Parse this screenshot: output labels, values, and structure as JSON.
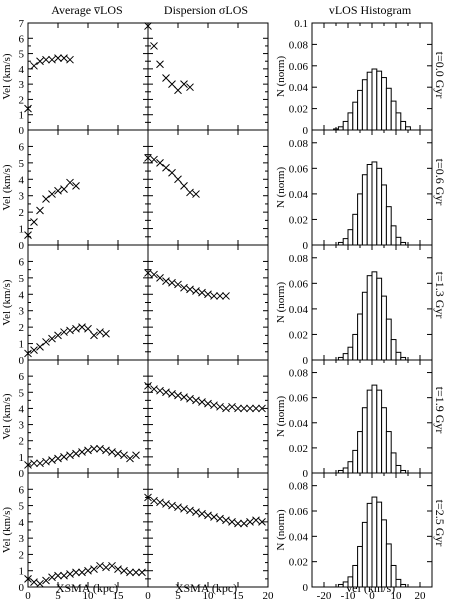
{
  "figure": {
    "col_titles": [
      "Average v̅LOS",
      "Dispersion σLOS",
      "vLOS Histogram"
    ],
    "row_labels": [
      "t=0.0 Gyr",
      "t=0.6 Gyr",
      "t=1.3 Gyr",
      "t=1.9 Gyr",
      "t=2.5 Gyr"
    ],
    "ylabel_left": "Vel (km/s)",
    "ylabel_right": "N (norm)",
    "xlabel_left": "XSMA (kpc)",
    "xlabel_mid": "XSMA (kpc)",
    "xlabel_right": "Vel (km/s)",
    "y_ticks_vel": [
      "0",
      "1",
      "2",
      "3",
      "4",
      "5",
      "6",
      "7"
    ],
    "y_ticks_vel_short": [
      "0",
      "1",
      "2",
      "3",
      "4",
      "5",
      "6"
    ],
    "y_ticks_hist": [
      "0",
      "0.02",
      "0.04",
      "0.06",
      "0.08",
      "0.1"
    ],
    "y_ticks_hist_short": [
      "0",
      "0.02",
      "0.04",
      "0.06",
      "0.08"
    ],
    "x_ticks_kpc_left": [
      "0",
      "5",
      "10",
      "15"
    ],
    "x_ticks_kpc_mid": [
      "0",
      "5",
      "10",
      "15",
      "20"
    ],
    "x_ticks_hist": [
      "-20",
      "-10",
      "0",
      "10",
      "20"
    ]
  },
  "chart_data": [
    {
      "type": "scatter",
      "panel": "avg-t0.0",
      "marker": "x",
      "xlim": [
        0,
        20
      ],
      "ylim": [
        0,
        7
      ],
      "x": [
        0,
        1,
        2,
        3,
        4,
        5,
        6,
        7
      ],
      "y": [
        1.4,
        4.2,
        4.5,
        4.6,
        4.6,
        4.7,
        4.7,
        4.6
      ]
    },
    {
      "type": "scatter",
      "panel": "avg-t0.6",
      "marker": "x",
      "xlim": [
        0,
        20
      ],
      "ylim": [
        0,
        7
      ],
      "x": [
        0,
        1,
        2,
        3,
        4,
        5,
        6,
        7,
        8
      ],
      "y": [
        0.6,
        1.4,
        2.1,
        2.8,
        3.1,
        3.3,
        3.4,
        3.8,
        3.6
      ]
    },
    {
      "type": "scatter",
      "panel": "avg-t1.3",
      "marker": "x",
      "xlim": [
        0,
        20
      ],
      "ylim": [
        0,
        7
      ],
      "x": [
        0,
        1,
        2,
        3,
        4,
        5,
        6,
        7,
        8,
        9,
        10,
        11,
        12,
        13
      ],
      "y": [
        0.4,
        0.6,
        0.8,
        1.1,
        1.3,
        1.5,
        1.7,
        1.8,
        1.9,
        2.0,
        1.9,
        1.5,
        1.7,
        1.6
      ]
    },
    {
      "type": "scatter",
      "panel": "avg-t1.9",
      "marker": "x",
      "xlim": [
        0,
        20
      ],
      "ylim": [
        0,
        7
      ],
      "x": [
        0,
        1,
        2,
        3,
        4,
        5,
        6,
        7,
        8,
        9,
        10,
        11,
        12,
        13,
        14,
        15,
        16,
        17,
        18
      ],
      "y": [
        0.5,
        0.6,
        0.6,
        0.7,
        0.8,
        0.9,
        1.0,
        1.1,
        1.2,
        1.3,
        1.4,
        1.5,
        1.5,
        1.4,
        1.3,
        1.2,
        1.1,
        0.9,
        1.1
      ]
    },
    {
      "type": "scatter",
      "panel": "avg-t2.5",
      "marker": "x",
      "xlim": [
        0,
        20
      ],
      "ylim": [
        0,
        7
      ],
      "x": [
        0,
        1,
        2,
        3,
        4,
        5,
        6,
        7,
        8,
        9,
        10,
        11,
        12,
        13,
        14,
        15,
        16,
        17,
        18,
        19
      ],
      "y": [
        0.5,
        0.3,
        0.2,
        0.4,
        0.6,
        0.7,
        0.7,
        0.8,
        0.9,
        0.9,
        1.0,
        1.1,
        1.3,
        1.2,
        1.3,
        1.1,
        1.0,
        0.9,
        0.9,
        0.9
      ]
    },
    {
      "type": "scatter",
      "panel": "disp-t0.0",
      "marker": "x",
      "xlim": [
        0,
        20
      ],
      "ylim": [
        0,
        7
      ],
      "x": [
        0,
        1,
        2,
        3,
        4,
        5,
        6,
        7
      ],
      "y": [
        6.8,
        5.5,
        4.3,
        3.4,
        3.0,
        2.6,
        3.0,
        2.8
      ]
    },
    {
      "type": "scatter",
      "panel": "disp-t0.6",
      "marker": "x",
      "xlim": [
        0,
        20
      ],
      "ylim": [
        0,
        7
      ],
      "x": [
        0,
        1,
        2,
        3,
        4,
        5,
        6,
        7,
        8
      ],
      "y": [
        5.3,
        5.2,
        5.0,
        4.7,
        4.4,
        4.0,
        3.6,
        3.2,
        3.1
      ]
    },
    {
      "type": "scatter",
      "panel": "disp-t1.3",
      "marker": "x",
      "xlim": [
        0,
        20
      ],
      "ylim": [
        0,
        7
      ],
      "x": [
        0,
        1,
        2,
        3,
        4,
        5,
        6,
        7,
        8,
        9,
        10,
        11,
        12,
        13
      ],
      "y": [
        5.3,
        5.2,
        5.0,
        4.8,
        4.7,
        4.6,
        4.4,
        4.3,
        4.2,
        4.1,
        4.0,
        3.9,
        3.9,
        3.9
      ]
    },
    {
      "type": "scatter",
      "panel": "disp-t1.9",
      "marker": "x",
      "xlim": [
        0,
        20
      ],
      "ylim": [
        0,
        7
      ],
      "x": [
        0,
        1,
        2,
        3,
        4,
        5,
        6,
        7,
        8,
        9,
        10,
        11,
        12,
        13,
        14,
        15,
        16,
        17,
        18,
        19
      ],
      "y": [
        5.4,
        5.2,
        5.1,
        5.0,
        4.9,
        4.8,
        4.7,
        4.6,
        4.5,
        4.4,
        4.3,
        4.2,
        4.1,
        4.0,
        4.1,
        4.0,
        4.0,
        4.0,
        4.0,
        4.0
      ]
    },
    {
      "type": "scatter",
      "panel": "disp-t2.5",
      "marker": "x",
      "xlim": [
        0,
        20
      ],
      "ylim": [
        0,
        7
      ],
      "x": [
        0,
        1,
        2,
        3,
        4,
        5,
        6,
        7,
        8,
        9,
        10,
        11,
        12,
        13,
        14,
        15,
        16,
        17,
        18,
        19
      ],
      "y": [
        5.5,
        5.3,
        5.2,
        5.1,
        5.0,
        4.9,
        4.8,
        4.7,
        4.6,
        4.5,
        4.4,
        4.3,
        4.2,
        4.1,
        4.0,
        3.9,
        3.9,
        4.0,
        4.1,
        4.0
      ]
    },
    {
      "type": "bar",
      "panel": "hist-t0.0",
      "xlim": [
        -25,
        25
      ],
      "ylim": [
        0,
        0.1
      ],
      "x": [
        -15,
        -13,
        -11,
        -9,
        -7,
        -5,
        -3,
        -1,
        1,
        3,
        5,
        7,
        9,
        11,
        13,
        15
      ],
      "values": [
        0.001,
        0.003,
        0.008,
        0.016,
        0.026,
        0.037,
        0.047,
        0.054,
        0.057,
        0.055,
        0.049,
        0.039,
        0.027,
        0.016,
        0.008,
        0.003
      ]
    },
    {
      "type": "bar",
      "panel": "hist-t0.6",
      "xlim": [
        -25,
        25
      ],
      "ylim": [
        0,
        0.09
      ],
      "x": [
        -13,
        -11,
        -9,
        -7,
        -5,
        -3,
        -1,
        1,
        3,
        5,
        7,
        9,
        11,
        13
      ],
      "values": [
        0.002,
        0.005,
        0.012,
        0.024,
        0.04,
        0.055,
        0.063,
        0.065,
        0.06,
        0.047,
        0.03,
        0.015,
        0.006,
        0.002
      ]
    },
    {
      "type": "bar",
      "panel": "hist-t1.3",
      "xlim": [
        -25,
        25
      ],
      "ylim": [
        0,
        0.09
      ],
      "x": [
        -13,
        -11,
        -9,
        -7,
        -5,
        -3,
        -1,
        1,
        3,
        5,
        7,
        9,
        11,
        13
      ],
      "values": [
        0.002,
        0.005,
        0.01,
        0.02,
        0.036,
        0.053,
        0.066,
        0.069,
        0.064,
        0.05,
        0.032,
        0.016,
        0.006,
        0.002
      ]
    },
    {
      "type": "bar",
      "panel": "hist-t1.9",
      "xlim": [
        -25,
        25
      ],
      "ylim": [
        0,
        0.09
      ],
      "x": [
        -13,
        -11,
        -9,
        -7,
        -5,
        -3,
        -1,
        1,
        3,
        5,
        7,
        9,
        11,
        13
      ],
      "values": [
        0.002,
        0.004,
        0.009,
        0.018,
        0.033,
        0.052,
        0.066,
        0.07,
        0.066,
        0.052,
        0.033,
        0.016,
        0.006,
        0.002
      ]
    },
    {
      "type": "bar",
      "panel": "hist-t2.5",
      "xlim": [
        -25,
        25
      ],
      "ylim": [
        0,
        0.09
      ],
      "x": [
        -13,
        -11,
        -9,
        -7,
        -5,
        -3,
        -1,
        1,
        3,
        5,
        7,
        9,
        11,
        13
      ],
      "values": [
        0.002,
        0.004,
        0.008,
        0.017,
        0.032,
        0.051,
        0.066,
        0.071,
        0.067,
        0.053,
        0.034,
        0.017,
        0.006,
        0.002
      ]
    }
  ]
}
